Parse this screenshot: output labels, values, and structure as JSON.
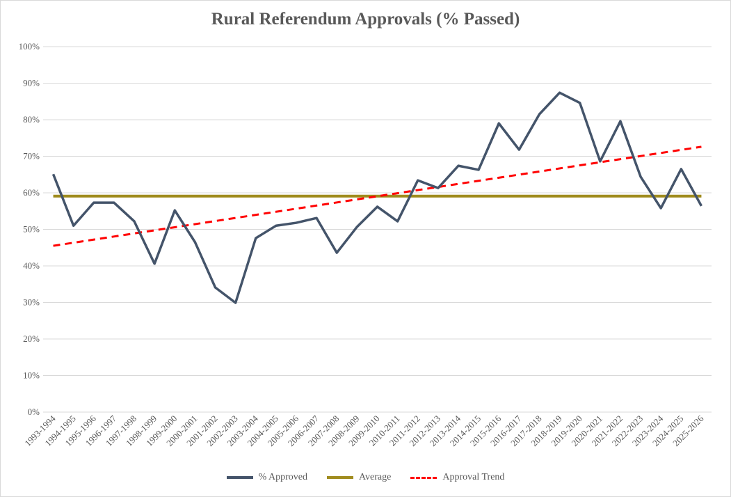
{
  "chart_data": {
    "type": "line",
    "title": "Rural Referendum Approvals (% Passed)",
    "xlabel": "",
    "ylabel": "",
    "ylim": [
      0,
      100
    ],
    "yticks": [
      "0%",
      "10%",
      "20%",
      "30%",
      "40%",
      "50%",
      "60%",
      "70%",
      "80%",
      "90%",
      "100%"
    ],
    "grid": true,
    "legend_position": "bottom",
    "categories": [
      "1993-1994",
      "1994-1995",
      "1995-1996",
      "1996-1997",
      "1997-1998",
      "1998-1999",
      "1999-2000",
      "2000-2001",
      "2001-2002",
      "2002-2003",
      "2003-2004",
      "2004-2005",
      "2005-2006",
      "2006-2007",
      "2007-2008",
      "2008-2009",
      "2009-2010",
      "2010-2011",
      "2011-2012",
      "2012-2013",
      "2013-2014",
      "2014-2015",
      "2015-2016",
      "2016-2017",
      "2017-2018",
      "2018-2019",
      "2019-2020",
      "2020-2021",
      "2021-2022",
      "2022-2023",
      "2023-2024",
      "2024-2025",
      "2025-2026"
    ],
    "series": [
      {
        "name": "% Approved",
        "color": "#44546a",
        "style": "solid",
        "values": [
          65.1,
          51.0,
          57.3,
          57.3,
          52.2,
          40.6,
          55.2,
          46.5,
          34.1,
          29.9,
          47.6,
          51.0,
          51.8,
          53.1,
          43.6,
          50.7,
          56.2,
          52.2,
          63.4,
          61.3,
          67.4,
          66.3,
          79.0,
          71.8,
          81.5,
          87.4,
          84.6,
          68.6,
          79.6,
          64.4,
          55.8,
          66.5,
          56.4
        ]
      },
      {
        "name": "Average",
        "color": "#a08c1e",
        "style": "solid",
        "values_constant": 59.1
      },
      {
        "name": "Approval Trend",
        "color": "#ff0000",
        "style": "dashed",
        "linear": [
          45.5,
          72.6
        ]
      }
    ]
  }
}
